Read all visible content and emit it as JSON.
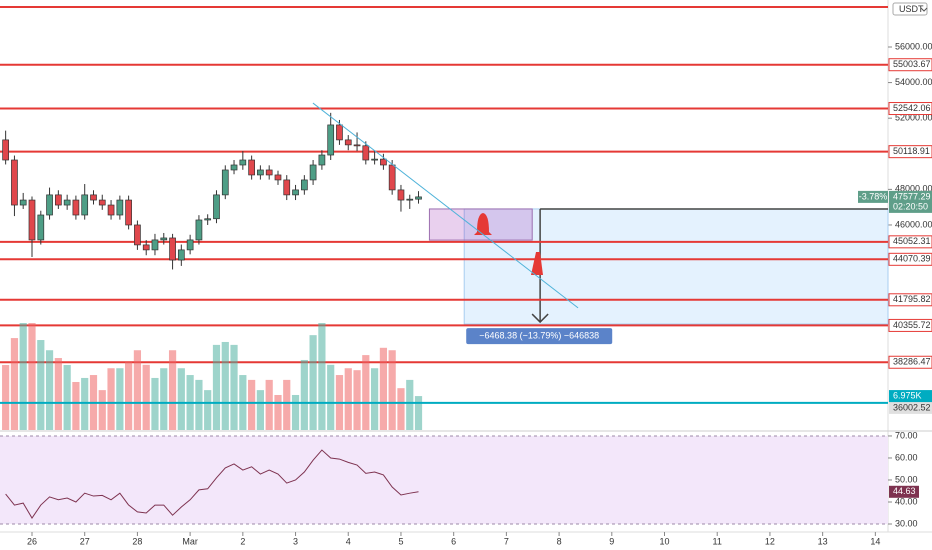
{
  "chart_data": {
    "type": "candlestick",
    "currency": "USDT",
    "x": [
      -0.5,
      -0.333,
      -0.167,
      0,
      0.167,
      0.333,
      0.5,
      0.667,
      0.833,
      1,
      1.167,
      1.333,
      1.5,
      1.667,
      1.833,
      2,
      2.167,
      2.333,
      2.5,
      2.667,
      2.833,
      3,
      3.167,
      3.333,
      3.5,
      3.667,
      3.833,
      4,
      4.167,
      4.333,
      4.5,
      4.667,
      4.833,
      5,
      5.167,
      5.333,
      5.5,
      5.667,
      5.833,
      6,
      6.167,
      6.333,
      6.5,
      6.667,
      6.833,
      7,
      7.167,
      7.333
    ],
    "open": [
      50780,
      49650,
      47120,
      47400,
      45160,
      46560,
      47690,
      47120,
      47400,
      46560,
      47690,
      47400,
      47120,
      46560,
      47400,
      46000,
      44880,
      44600,
      45160,
      45270,
      44030,
      44600,
      45160,
      46280,
      46350,
      47690,
      49090,
      49370,
      49650,
      48810,
      49090,
      48810,
      48530,
      47690,
      47970,
      48530,
      49370,
      49930,
      51620,
      50780,
      50500,
      50450,
      49650,
      49700,
      49370,
      47970,
      47400,
      47450
    ],
    "high": [
      51300,
      49900,
      47800,
      47600,
      46800,
      48100,
      47950,
      47700,
      47650,
      48300,
      47950,
      47700,
      47400,
      47650,
      47650,
      46250,
      45150,
      45500,
      45550,
      45500,
      44900,
      45450,
      46550,
      46600,
      47950,
      49350,
      49650,
      50150,
      49900,
      49350,
      49350,
      49050,
      48800,
      48250,
      48800,
      49650,
      50200,
      52300,
      51900,
      51050,
      51200,
      50700,
      50200,
      50000,
      49650,
      48250,
      47700,
      47900
    ],
    "low": [
      49400,
      46500,
      46900,
      44200,
      44900,
      46300,
      46900,
      46850,
      46300,
      46300,
      47150,
      46850,
      46300,
      46300,
      45750,
      44600,
      44300,
      44300,
      44900,
      43500,
      43700,
      44350,
      44900,
      46000,
      46100,
      47450,
      48850,
      49100,
      48550,
      48550,
      48550,
      48250,
      47400,
      47400,
      47700,
      48250,
      49100,
      49650,
      50500,
      50200,
      50150,
      49400,
      49400,
      49100,
      47700,
      46750,
      46900,
      47200
    ],
    "close": [
      49650,
      47120,
      47400,
      45160,
      46560,
      47690,
      47120,
      47400,
      46560,
      47690,
      47400,
      47120,
      46560,
      47400,
      46000,
      44880,
      44600,
      45160,
      45270,
      44030,
      44600,
      45160,
      46280,
      46350,
      47690,
      49090,
      49370,
      49650,
      48810,
      49090,
      48810,
      48530,
      47690,
      47970,
      48530,
      49370,
      49930,
      51620,
      50780,
      50500,
      50450,
      49650,
      49700,
      49370,
      47970,
      47400,
      47450,
      47577.29
    ],
    "volume": [
      13360,
      18900,
      22000,
      22000,
      18500,
      16400,
      14800,
      13360,
      9870,
      10700,
      11300,
      8200,
      12700,
      12700,
      14000,
      16400,
      13400,
      10700,
      12700,
      16400,
      12700,
      11300,
      10300,
      8200,
      17500,
      18100,
      17500,
      11300,
      10300,
      8200,
      10300,
      7200,
      10300,
      7200,
      14400,
      19500,
      22000,
      13400,
      11300,
      12700,
      12300,
      15400,
      12700,
      16900,
      16400,
      8600,
      10300,
      6975
    ],
    "volume_lim": [
      0,
      22000
    ],
    "last_volume_label": "6.975K",
    "up_color": "#4e9e86",
    "down_color": "#e0474c",
    "xlim": [
      -0.607,
      16.24
    ],
    "xticks": [
      {
        "value": 0,
        "label": "26"
      },
      {
        "value": 1,
        "label": "27"
      },
      {
        "value": 2,
        "label": "28"
      },
      {
        "value": 3,
        "label": "Mar"
      },
      {
        "value": 4,
        "label": "2"
      },
      {
        "value": 5,
        "label": "3"
      },
      {
        "value": 6,
        "label": "4"
      },
      {
        "value": 7,
        "label": "5"
      },
      {
        "value": 8,
        "label": "6"
      },
      {
        "value": 9,
        "label": "7"
      },
      {
        "value": 10,
        "label": "8"
      },
      {
        "value": 11,
        "label": "9"
      },
      {
        "value": 12,
        "label": "10"
      },
      {
        "value": 13,
        "label": "11"
      },
      {
        "value": 14,
        "label": "12"
      },
      {
        "value": 15,
        "label": "13"
      },
      {
        "value": 16,
        "label": "14"
      }
    ],
    "ylim": [
      34480,
      58640
    ],
    "yticks": [
      {
        "value": 56000,
        "label": "56000.00"
      },
      {
        "value": 54000,
        "label": "54000.00"
      },
      {
        "value": 52000,
        "label": "52000.00"
      },
      {
        "value": 48000,
        "label": "48000.00"
      },
      {
        "value": 46000,
        "label": "46000.00"
      }
    ],
    "level_color": "#e53935",
    "levels": [
      {
        "value": 58250
      },
      {
        "value": 55003.67,
        "label": "55003.67"
      },
      {
        "value": 52542.06,
        "label": "52542.06"
      },
      {
        "value": 50118.91,
        "label": "50118.91"
      },
      {
        "value": 45052.31,
        "label": "45052.31"
      },
      {
        "value": 44070.39,
        "label": "44070.39"
      },
      {
        "value": 41795.82,
        "label": "41795.82"
      },
      {
        "value": 40355.72,
        "label": "40355.72"
      },
      {
        "value": 38286.47,
        "label": "38286.47"
      }
    ],
    "hline": {
      "value": 36002.52,
      "label": "36002.52",
      "color": "#00acc1"
    },
    "last_change": "-3.78%",
    "last_price_label": "47577.29",
    "countdown": "02:20:50",
    "trendline": {
      "x": [
        5.33,
        10.36
      ],
      "y": [
        52850,
        41340
      ],
      "color": "#4fb3d9"
    },
    "zone": {
      "x": [
        7.54,
        9.49
      ],
      "y": [
        46900,
        45150
      ]
    },
    "measure": {
      "x": [
        8.2,
        16.24
      ],
      "y": [
        46900,
        40431.62
      ],
      "arrow_x": 9.64,
      "label": "−6468.38 (−13.79%) −646838"
    },
    "rsi": {
      "values": [
        43.6,
        38.6,
        39.5,
        32.7,
        38.6,
        42.3,
        41,
        41.8,
        40,
        44,
        42.7,
        43,
        41,
        44,
        38.6,
        35.5,
        35,
        38.6,
        38.6,
        34,
        37.7,
        41,
        45.5,
        46,
        51,
        55.5,
        57.3,
        54.5,
        56,
        52.7,
        54.5,
        52.7,
        48.6,
        50,
        53.6,
        59,
        63.6,
        60,
        59.5,
        58,
        56.8,
        53,
        53.6,
        52.3,
        46.8,
        43.2,
        44,
        44.63
      ],
      "ylim": [
        25,
        71.8
      ],
      "band": [
        30,
        70
      ],
      "color": "#7e3350",
      "last_label": "44.63",
      "yticks": [
        {
          "value": 70,
          "label": "70.00"
        },
        {
          "value": 60,
          "label": "60.00"
        },
        {
          "value": 50,
          "label": "50.00"
        },
        {
          "value": 40,
          "label": "40.00"
        },
        {
          "value": 30,
          "label": "30.00"
        }
      ]
    }
  }
}
